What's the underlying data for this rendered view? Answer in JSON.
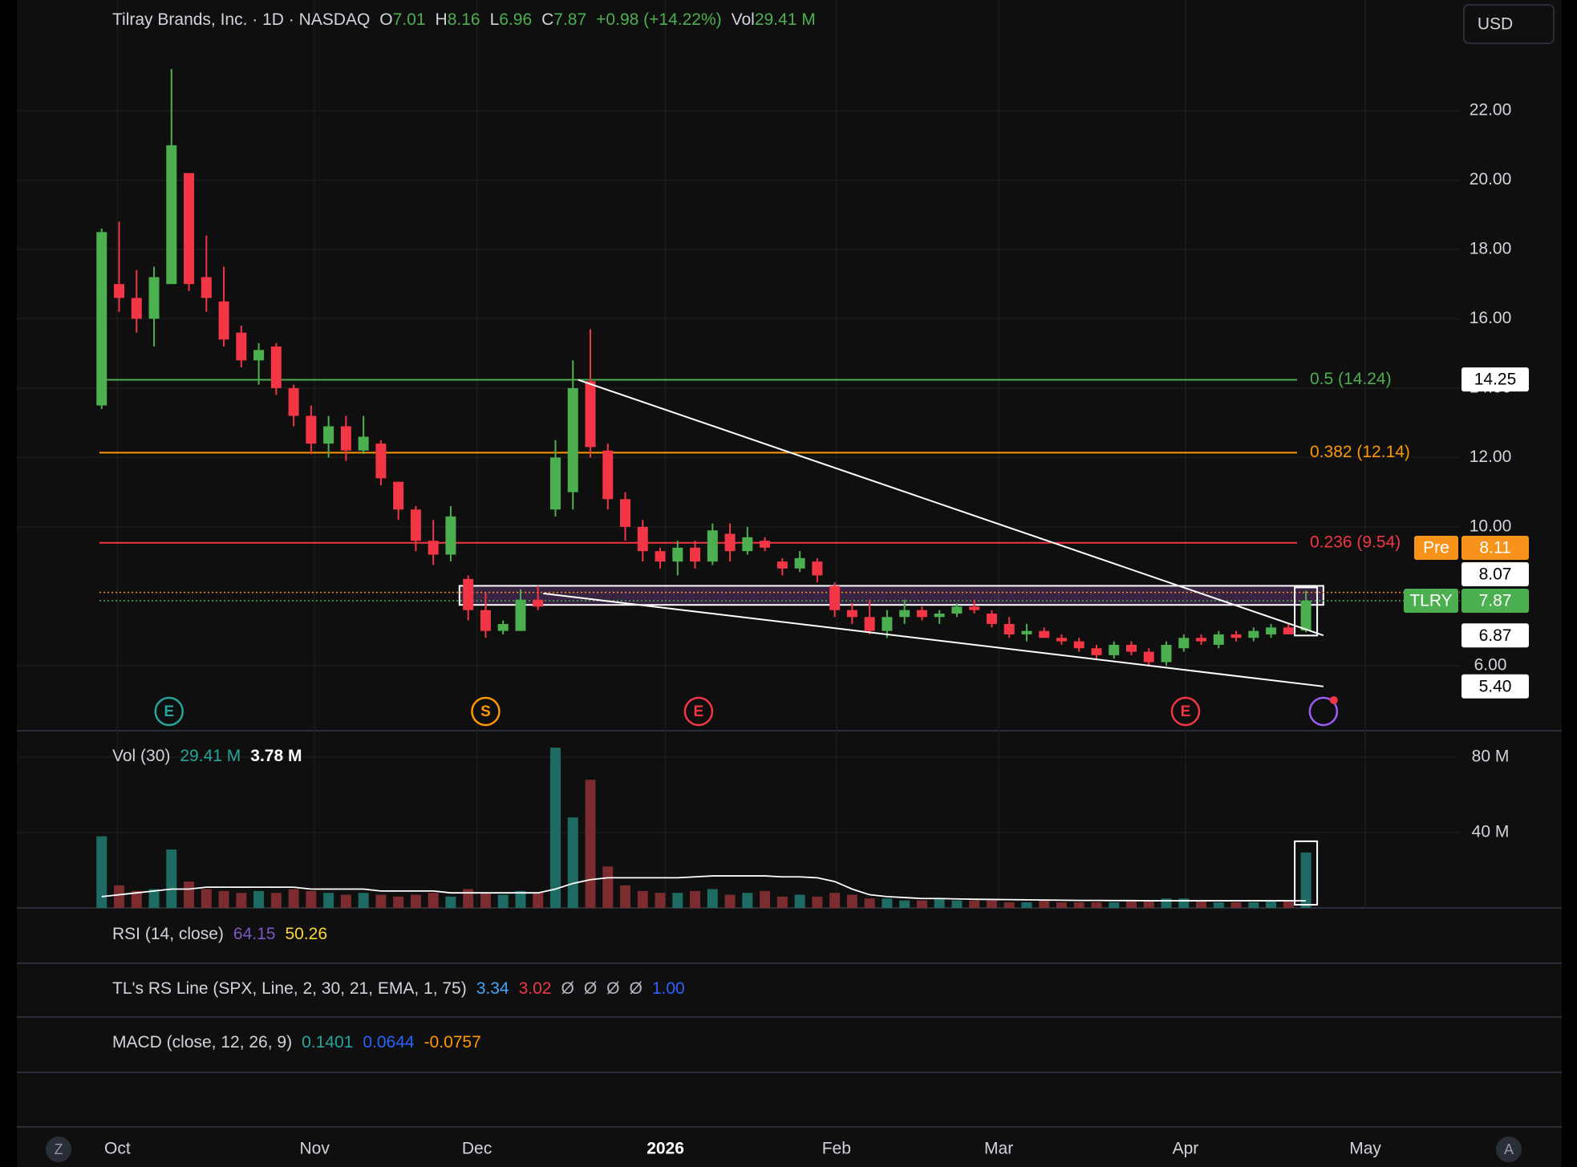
{
  "chart_data": {
    "type": "candlestick",
    "header": {
      "title": "Tilray Brands, Inc. · 1D · NASDAQ",
      "color": "#4caf50",
      "fields": [
        {
          "key": "O",
          "value": "7.01"
        },
        {
          "key": "H",
          "value": "8.16"
        },
        {
          "key": "L",
          "value": "6.96"
        },
        {
          "key": "C",
          "value": "7.87"
        },
        {
          "value": "+0.98 (+14.22%)"
        },
        {
          "key": "Vol",
          "value": "29.41 M"
        }
      ]
    },
    "currency": "USD",
    "nav_left": "Z",
    "nav_right": "A",
    "up_color": "#4caf50",
    "down_color": "#f23645",
    "volume_up_color": "#1d6b63",
    "volume_down_color": "#7c2b2f",
    "grid": true,
    "xlim": [
      -4.86,
      77.82
    ],
    "xticks": [
      {
        "value": 0.9,
        "label": "Oct"
      },
      {
        "value": 12.2,
        "label": "Nov"
      },
      {
        "value": 21.5,
        "label": "Dec"
      },
      {
        "value": 32.3,
        "label": "2026",
        "bold": true
      },
      {
        "value": 42.1,
        "label": "Feb"
      },
      {
        "value": 51.4,
        "label": "Mar"
      },
      {
        "value": 62.1,
        "label": "Apr"
      },
      {
        "value": 72.4,
        "label": "May"
      }
    ],
    "ylim": [
      4.17,
      25.19
    ],
    "yticks": [
      {
        "value": 6,
        "label": "6.00"
      },
      {
        "value": 10,
        "label": "10.00"
      },
      {
        "value": 12,
        "label": "12.00"
      },
      {
        "value": 14,
        "label": "14.00"
      },
      {
        "value": 16,
        "label": "16.00"
      },
      {
        "value": 18,
        "label": "18.00"
      },
      {
        "value": 20,
        "label": "20.00"
      },
      {
        "value": 22,
        "label": "22.00"
      }
    ],
    "ohlc": [
      [
        13.5,
        18.6,
        13.4,
        18.5
      ],
      [
        17.0,
        18.8,
        16.2,
        16.6
      ],
      [
        16.6,
        17.4,
        15.6,
        16.0
      ],
      [
        16.0,
        17.5,
        15.2,
        17.2
      ],
      [
        17.0,
        23.2,
        17.0,
        21.0
      ],
      [
        20.2,
        20.2,
        16.8,
        17.0
      ],
      [
        17.2,
        18.4,
        16.2,
        16.6
      ],
      [
        16.5,
        17.5,
        15.2,
        15.4
      ],
      [
        15.6,
        15.8,
        14.6,
        14.8
      ],
      [
        14.8,
        15.3,
        14.1,
        15.1
      ],
      [
        15.2,
        15.3,
        13.8,
        14.0
      ],
      [
        14.0,
        14.1,
        12.9,
        13.2
      ],
      [
        13.2,
        13.5,
        12.1,
        12.4
      ],
      [
        12.4,
        13.2,
        12.0,
        12.9
      ],
      [
        12.9,
        13.2,
        11.9,
        12.2
      ],
      [
        12.2,
        13.2,
        12.1,
        12.6
      ],
      [
        12.4,
        12.5,
        11.2,
        11.4
      ],
      [
        11.3,
        11.3,
        10.2,
        10.5
      ],
      [
        10.5,
        10.6,
        9.3,
        9.6
      ],
      [
        9.6,
        10.2,
        8.9,
        9.2
      ],
      [
        9.2,
        10.6,
        9.0,
        10.3
      ],
      [
        8.5,
        8.6,
        7.3,
        7.6
      ],
      [
        7.6,
        8.1,
        6.8,
        7.0
      ],
      [
        7.0,
        7.3,
        6.9,
        7.2
      ],
      [
        7.0,
        8.2,
        7.0,
        7.9
      ],
      [
        7.9,
        8.3,
        7.6,
        7.7
      ],
      [
        10.5,
        12.5,
        10.3,
        12.0
      ],
      [
        11.0,
        14.8,
        10.5,
        14.0
      ],
      [
        14.2,
        15.7,
        12.0,
        12.3
      ],
      [
        12.2,
        12.4,
        10.5,
        10.8
      ],
      [
        10.8,
        11.0,
        9.6,
        10.0
      ],
      [
        10.0,
        10.2,
        9.0,
        9.3
      ],
      [
        9.3,
        9.4,
        8.8,
        9.0
      ],
      [
        9.0,
        9.6,
        8.6,
        9.4
      ],
      [
        9.4,
        9.6,
        8.8,
        9.0
      ],
      [
        9.0,
        10.1,
        8.9,
        9.9
      ],
      [
        9.8,
        10.1,
        9.0,
        9.3
      ],
      [
        9.3,
        10.0,
        9.2,
        9.7
      ],
      [
        9.6,
        9.7,
        9.3,
        9.4
      ],
      [
        9.0,
        9.1,
        8.6,
        8.8
      ],
      [
        8.8,
        9.3,
        8.7,
        9.1
      ],
      [
        9.0,
        9.1,
        8.4,
        8.6
      ],
      [
        8.3,
        8.4,
        7.4,
        7.6
      ],
      [
        7.6,
        7.8,
        7.2,
        7.4
      ],
      [
        7.4,
        7.9,
        6.9,
        7.0
      ],
      [
        7.0,
        7.6,
        6.8,
        7.4
      ],
      [
        7.4,
        7.9,
        7.2,
        7.6
      ],
      [
        7.6,
        7.7,
        7.3,
        7.4
      ],
      [
        7.4,
        7.6,
        7.2,
        7.5
      ],
      [
        7.5,
        7.8,
        7.4,
        7.7
      ],
      [
        7.7,
        7.9,
        7.5,
        7.6
      ],
      [
        7.5,
        7.6,
        7.1,
        7.2
      ],
      [
        7.2,
        7.4,
        6.8,
        6.9
      ],
      [
        6.9,
        7.2,
        6.7,
        7.0
      ],
      [
        7.0,
        7.1,
        6.8,
        6.8
      ],
      [
        6.8,
        6.9,
        6.6,
        6.7
      ],
      [
        6.7,
        6.8,
        6.4,
        6.5
      ],
      [
        6.5,
        6.6,
        6.2,
        6.3
      ],
      [
        6.3,
        6.7,
        6.2,
        6.6
      ],
      [
        6.6,
        6.7,
        6.3,
        6.4
      ],
      [
        6.4,
        6.5,
        6.0,
        6.1
      ],
      [
        6.1,
        6.7,
        6.0,
        6.6
      ],
      [
        6.5,
        6.9,
        6.4,
        6.8
      ],
      [
        6.8,
        6.9,
        6.6,
        6.7
      ],
      [
        6.6,
        7.0,
        6.5,
        6.9
      ],
      [
        6.9,
        7.0,
        6.7,
        6.8
      ],
      [
        6.8,
        7.1,
        6.7,
        7.0
      ],
      [
        6.9,
        7.2,
        6.8,
        7.1
      ],
      [
        7.1,
        7.2,
        6.9,
        6.9
      ],
      [
        7.01,
        8.16,
        6.96,
        7.87
      ]
    ],
    "volume": [
      38,
      12,
      9,
      10,
      31,
      14,
      10,
      9,
      8,
      9,
      8,
      10,
      9,
      8,
      7,
      8,
      7,
      6,
      7,
      8,
      6,
      10,
      8,
      7,
      9,
      8,
      85,
      48,
      68,
      22,
      12,
      9,
      8,
      8,
      9,
      10,
      7,
      8,
      9,
      6,
      7,
      6,
      8,
      7,
      5,
      5,
      4,
      4,
      5,
      4,
      4,
      4,
      3,
      3,
      4,
      3,
      3,
      3,
      3,
      4,
      4,
      5,
      5,
      4,
      3,
      3,
      3,
      4,
      4,
      29.41
    ],
    "volume_ma": [
      6,
      7,
      8,
      9,
      10,
      10,
      11,
      11,
      11,
      11,
      11,
      11,
      10,
      10,
      10,
      10,
      9,
      9,
      9,
      9,
      8,
      8,
      8,
      8,
      8,
      8,
      10,
      13,
      15,
      16,
      16,
      16,
      16,
      16,
      16.5,
      17,
      17,
      17,
      17,
      16.5,
      16.5,
      16,
      14,
      10,
      7,
      6,
      5.5,
      5,
      5,
      4.8,
      4.6,
      4.5,
      4.4,
      4.3,
      4.2,
      4.1,
      4.0,
      4.0,
      3.9,
      3.9,
      3.8,
      3.8,
      3.8,
      3.8,
      3.8,
      3.8,
      3.8,
      3.8,
      3.8,
      3.78
    ],
    "volume_ylim": [
      0,
      93.6
    ],
    "volume_ticks": [
      {
        "value": 40,
        "label": "40 M"
      },
      {
        "value": 80,
        "label": "80 M"
      }
    ],
    "volume_legend": {
      "name": "Vol (30)",
      "values": [
        {
          "text": "29.41 M",
          "color": "#26a69a"
        },
        {
          "text": "3.78 M",
          "color": "#ffffff",
          "bold": true
        }
      ]
    },
    "levels": [
      {
        "label": "0.5 (14.24)",
        "value": 14.24,
        "color": "#4caf50"
      },
      {
        "label": "0.382 (12.14)",
        "value": 12.14,
        "color": "#ff9800"
      },
      {
        "label": "0.236 (9.54)",
        "value": 9.54,
        "color": "#f23645"
      }
    ],
    "trend_lines": [
      {
        "x": [
          27.3,
          70
        ],
        "y": [
          14.24,
          6.87
        ]
      },
      {
        "x": [
          25.3,
          70
        ],
        "y": [
          8.08,
          5.4
        ]
      }
    ],
    "box": {
      "x": [
        20.5,
        70
      ],
      "y": [
        8.3,
        7.75
      ]
    },
    "price_labels": [
      {
        "value": 14.25,
        "label": "14.25",
        "bg": "#ffffff",
        "fg": "#000000"
      },
      {
        "tag": "Pre",
        "value": 8.11,
        "label": "8.11",
        "bg": "#f7931a",
        "fg": "#ffffff",
        "line": true
      },
      {
        "value": 8.07,
        "label": "8.07",
        "bg": "#ffffff",
        "fg": "#000000"
      },
      {
        "tag": "TLRY",
        "value": 7.87,
        "label": "7.87",
        "bg": "#4caf50",
        "fg": "#ffffff",
        "line": true
      },
      {
        "value": 6.87,
        "label": "6.87",
        "bg": "#ffffff",
        "fg": "#000000"
      },
      {
        "value": 5.4,
        "label": "5.40",
        "bg": "#ffffff",
        "fg": "#000000"
      }
    ],
    "events": [
      {
        "label": "E",
        "x": 3.86,
        "color": "#26a69a"
      },
      {
        "label": "S",
        "x": 22.0,
        "color": "#ff9800"
      },
      {
        "label": "E",
        "x": 34.2,
        "color": "#f23645"
      },
      {
        "label": "E",
        "x": 62.1,
        "color": "#f23645"
      }
    ],
    "indicators": [
      {
        "name": "RSI (14, close)",
        "values": [
          {
            "text": "64.15",
            "color": "#7e57c2"
          },
          {
            "text": "50.26",
            "color": "#fdd835"
          }
        ]
      },
      {
        "name": "TL's RS Line (SPX, Line, 2, 30, 21, EMA, 1, 75)",
        "values": [
          {
            "text": "3.34",
            "color": "#42a5f5"
          },
          {
            "text": "3.02",
            "color": "#f23645"
          },
          {
            "text": "Ø",
            "color": "#b2b5be"
          },
          {
            "text": "Ø",
            "color": "#b2b5be"
          },
          {
            "text": "Ø",
            "color": "#b2b5be"
          },
          {
            "text": "Ø",
            "color": "#b2b5be"
          },
          {
            "text": "1.00",
            "color": "#2962ff"
          }
        ]
      },
      {
        "name": "MACD (close, 12, 26, 9)",
        "values": [
          {
            "text": "0.1401",
            "color": "#26a69a"
          },
          {
            "text": "0.0644",
            "color": "#2962ff"
          },
          {
            "text": "-0.0757",
            "color": "#ff9800"
          }
        ]
      }
    ]
  }
}
